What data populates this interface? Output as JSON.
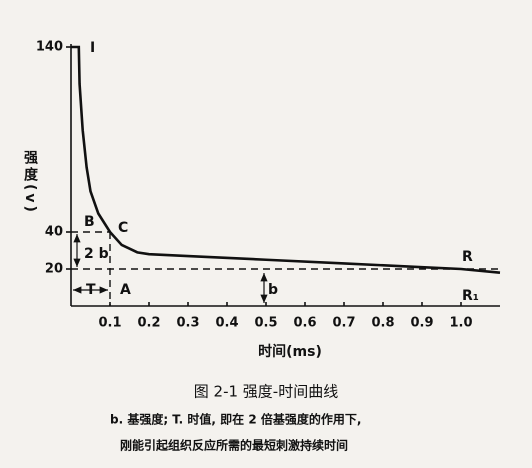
{
  "chart_data": {
    "type": "line",
    "x": [
      0,
      0.02,
      0.022,
      0.03,
      0.04,
      0.05,
      0.07,
      0.1,
      0.13,
      0.17,
      0.2,
      0.3,
      0.5,
      0.7,
      0.9,
      1.0,
      1.1
    ],
    "values": [
      140,
      140,
      120,
      95,
      75,
      62,
      50,
      40,
      33,
      29,
      28,
      27,
      25,
      23,
      21,
      20,
      18
    ],
    "color": "#111111",
    "xlim": [
      0,
      1.1
    ],
    "ylim": [
      0,
      140
    ],
    "xticks": [
      0.1,
      0.2,
      0.3,
      0.4,
      0.5,
      0.6,
      0.7,
      0.8,
      0.9,
      {
        "value": 1,
        "label": "1.0"
      }
    ],
    "yticks": [
      20,
      40,
      140
    ],
    "xlabel": "时间(ms)",
    "ylabel": "强度(v)",
    "annotations": [
      "I",
      "B",
      "C",
      "A",
      "T",
      "2 b",
      "b",
      "R",
      "R₁"
    ],
    "caption": "图 2-1   强度-时间曲线",
    "notes": [
      "b. 基强度; T. 时值, 即在 2 倍基强度的作用下,",
      "刚能引起组织反应所需的最短刺激持续时间"
    ]
  }
}
